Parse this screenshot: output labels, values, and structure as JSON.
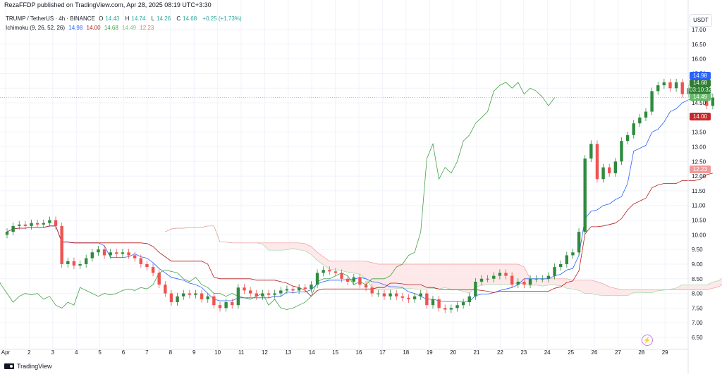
{
  "publisher_line": "RezaFFDP published on TradingView.com, Apr 28, 2025 08:19 UTC+3:30",
  "legend": {
    "symbol": "TRUMP / TetherUS · 4h · BINANCE",
    "o_label": "O",
    "o": "14.43",
    "h_label": "H",
    "h": "14.74",
    "l_label": "L",
    "l": "14.26",
    "c_label": "C",
    "c": "14.68",
    "change": "+0.25 (+1.73%)",
    "ichimoku_label": "Ichimoku (9, 26, 52, 26)",
    "ichimoku_values": [
      "14.98",
      "14.00",
      "14.68",
      "14.49",
      "12.23"
    ]
  },
  "currency": "USDT",
  "price_tags": {
    "conversion": "14.98",
    "last_price": "14.68",
    "countdown": "03:10:32",
    "lagging": "14.49",
    "base": "14.00",
    "span_b": "12.23"
  },
  "footer": {
    "brand": "TradingView"
  },
  "colors": {
    "up": "#26a69a",
    "up_body": "#26a69a",
    "bull": "#2e8b3e",
    "down": "#ef5350",
    "conversion": "#2962ff",
    "base": "#b71c1c",
    "lagging": "#43a047",
    "span_a": "#a5d6a7",
    "span_b": "#ef9a9a",
    "cloud_bull": "#e3f3e6",
    "cloud_bear": "#fde4e4",
    "last_price_tag": "#2e7d32",
    "conversion_tag": "#2962ff",
    "base_tag": "#c62828",
    "lagging_tag": "#66bb6a",
    "span_b_tag": "#ef9a9a"
  },
  "chart_data": {
    "type": "candlestick",
    "timeframe": "4h",
    "y_ticks": [
      6.5,
      7.0,
      7.5,
      8.0,
      8.5,
      9.0,
      9.5,
      10.0,
      10.5,
      11.0,
      11.5,
      12.0,
      12.5,
      13.0,
      13.5,
      14.0,
      14.5,
      15.0,
      15.5,
      16.0,
      16.5,
      17.0
    ],
    "y_tick_labels": [
      "6.50",
      "7.00",
      "7.50",
      "8.00",
      "8.50",
      "9.00",
      "9.50",
      "10.00",
      "10.50",
      "11.00",
      "11.50",
      "12.00",
      "12.50",
      "13.00",
      "13.50",
      "14.00",
      "14.50",
      "15.00",
      "15.50",
      "16.00",
      "16.50",
      "17.00"
    ],
    "x_labels": [
      "Apr",
      "2",
      "3",
      "4",
      "5",
      "6",
      "7",
      "8",
      "9",
      "10",
      "11",
      "12",
      "13",
      "14",
      "15",
      "16",
      "17",
      "18",
      "19",
      "20",
      "21",
      "22",
      "23",
      "24",
      "25",
      "26",
      "27",
      "28",
      "29"
    ],
    "last_price_line": 14.68,
    "candles_c": [
      10.1,
      10.3,
      10.35,
      10.3,
      10.4,
      10.35,
      10.4,
      10.5,
      10.3,
      9.0,
      9.1,
      8.95,
      9.0,
      9.2,
      9.4,
      9.5,
      9.3,
      9.4,
      9.35,
      9.4,
      9.3,
      9.2,
      9.0,
      8.9,
      8.7,
      8.3,
      8.0,
      7.7,
      7.9,
      8.0,
      7.95,
      8.0,
      7.8,
      7.9,
      7.6,
      7.5,
      7.7,
      7.6,
      8.2,
      8.1,
      8.0,
      7.9,
      8.0,
      7.95,
      8.0,
      8.1,
      8.15,
      8.1,
      8.2,
      8.15,
      8.3,
      8.7,
      8.8,
      8.75,
      8.7,
      8.5,
      8.4,
      8.55,
      8.3,
      8.2,
      8.0,
      8.0,
      7.9,
      8.0,
      7.9,
      7.85,
      7.8,
      7.9,
      8.0,
      7.6,
      7.8,
      7.5,
      7.45,
      7.5,
      7.6,
      7.7,
      7.9,
      8.4,
      8.5,
      8.5,
      8.6,
      8.7,
      8.6,
      8.3,
      8.4,
      8.3,
      8.5,
      8.5,
      8.5,
      8.6,
      8.9,
      9.0,
      9.3,
      9.4,
      10.1,
      12.6,
      13.1,
      11.9,
      12.3,
      12.1,
      12.5,
      13.2,
      13.4,
      13.8,
      14.0,
      14.2,
      14.9,
      15.1,
      15.2,
      15.0,
      15.2,
      14.8,
      15.0,
      14.9,
      14.7,
      14.4,
      14.68
    ]
  }
}
